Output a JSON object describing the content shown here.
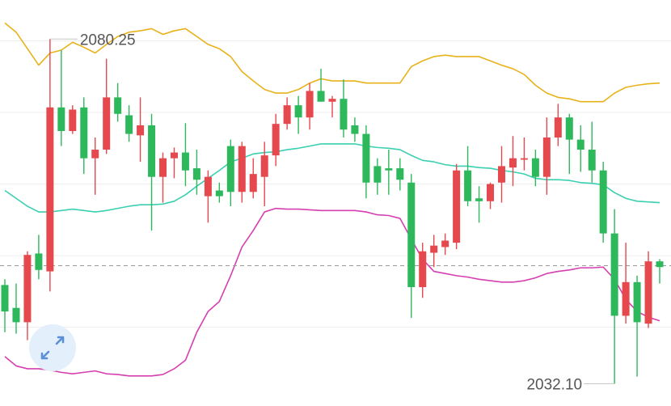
{
  "chart_data": {
    "type": "candlestick",
    "ylim": [
      2029,
      2085.7
    ],
    "yticks": [
      2040,
      2050,
      2060,
      2070,
      2080
    ],
    "grid": true,
    "show_tick_labels": false,
    "up_color": "#e5484d",
    "down_color": "#2eb85c",
    "candles": [
      [
        2045.9,
        2046.7,
        2039.3,
        2042.2
      ],
      [
        2042.7,
        2046.1,
        2039.1,
        2040.7
      ],
      [
        2040.7,
        2050.6,
        2038.2,
        2050.1
      ],
      [
        2050.3,
        2052.9,
        2046.7,
        2048.0
      ],
      [
        2047.8,
        2080.25,
        2045.0,
        2070.7
      ],
      [
        2070.7,
        2078.7,
        2065.3,
        2067.4
      ],
      [
        2067.4,
        2071.0,
        2067.0,
        2070.4
      ],
      [
        2070.7,
        2072.1,
        2061.4,
        2063.6
      ],
      [
        2063.6,
        2066.5,
        2058.5,
        2064.8
      ],
      [
        2064.8,
        2077.5,
        2064.2,
        2072.1
      ],
      [
        2072.1,
        2074.1,
        2068.7,
        2069.8
      ],
      [
        2069.6,
        2071.0,
        2065.9,
        2067.0
      ],
      [
        2066.8,
        2072.1,
        2063.1,
        2068.2
      ],
      [
        2068.2,
        2069.8,
        2053.5,
        2061.0
      ],
      [
        2061.0,
        2064.4,
        2057.4,
        2063.6
      ],
      [
        2063.6,
        2065.1,
        2060.8,
        2064.4
      ],
      [
        2064.4,
        2068.5,
        2059.7,
        2061.9
      ],
      [
        2062.2,
        2064.8,
        2058.5,
        2060.6
      ],
      [
        2058.3,
        2061.9,
        2054.6,
        2061.0
      ],
      [
        2059.1,
        2060.2,
        2057.4,
        2058.3
      ],
      [
        2065.3,
        2066.2,
        2056.9,
        2058.9
      ],
      [
        2058.9,
        2065.9,
        2057.4,
        2065.3
      ],
      [
        2058.9,
        2063.6,
        2058.0,
        2061.4
      ],
      [
        2061.0,
        2065.9,
        2056.9,
        2064.0
      ],
      [
        2064.0,
        2069.8,
        2062.5,
        2068.4
      ],
      [
        2068.4,
        2072.1,
        2067.6,
        2071.0
      ],
      [
        2071.0,
        2072.3,
        2067.0,
        2069.3
      ],
      [
        2069.3,
        2074.1,
        2067.6,
        2073.0
      ],
      [
        2073.0,
        2076.1,
        2071.5,
        2071.5
      ],
      [
        2071.5,
        2072.3,
        2069.3,
        2071.9
      ],
      [
        2071.9,
        2074.6,
        2066.5,
        2067.6
      ],
      [
        2068.2,
        2069.3,
        2065.9,
        2067.0
      ],
      [
        2067.0,
        2068.2,
        2058.0,
        2060.2
      ],
      [
        2062.5,
        2063.6,
        2058.5,
        2060.2
      ],
      [
        2062.2,
        2064.8,
        2058.5,
        2061.9
      ],
      [
        2062.2,
        2063.6,
        2059.1,
        2060.6
      ],
      [
        2060.2,
        2061.4,
        2041.3,
        2045.6
      ],
      [
        2045.6,
        2051.8,
        2044.1,
        2050.6
      ],
      [
        2050.4,
        2052.9,
        2048.4,
        2051.4
      ],
      [
        2051.2,
        2053.1,
        2050.1,
        2052.1
      ],
      [
        2051.8,
        2062.8,
        2050.9,
        2061.9
      ],
      [
        2061.9,
        2065.3,
        2056.9,
        2057.6
      ],
      [
        2058.0,
        2059.7,
        2054.6,
        2057.6
      ],
      [
        2057.6,
        2060.2,
        2056.5,
        2060.0
      ],
      [
        2060.2,
        2065.3,
        2057.4,
        2062.5
      ],
      [
        2062.3,
        2066.7,
        2059.7,
        2063.6
      ],
      [
        2063.4,
        2066.5,
        2061.9,
        2063.6
      ],
      [
        2063.6,
        2064.8,
        2059.7,
        2061.0
      ],
      [
        2061.0,
        2069.3,
        2058.5,
        2066.5
      ],
      [
        2066.5,
        2071.2,
        2065.3,
        2069.3
      ],
      [
        2069.3,
        2069.8,
        2061.4,
        2066.2
      ],
      [
        2066.2,
        2068.2,
        2061.7,
        2064.8
      ],
      [
        2064.8,
        2068.7,
        2060.2,
        2061.9
      ],
      [
        2061.9,
        2063.1,
        2051.8,
        2053.1
      ],
      [
        2053.1,
        2056.5,
        2032.1,
        2041.6
      ],
      [
        2041.6,
        2051.8,
        2040.5,
        2046.3
      ],
      [
        2046.3,
        2047.2,
        2033.1,
        2040.7
      ],
      [
        2040.5,
        2050.6,
        2039.9,
        2049.2
      ],
      [
        2049.2,
        2049.5,
        2046.1,
        2048.4
      ]
    ],
    "series": [
      {
        "color": "#e8b21a",
        "values": [
          2082.5,
          2081.2,
          2078.9,
          2076.6,
          2078.3,
          2078.7,
          2079.8,
          2079.1,
          2078.3,
          2079.5,
          2080.6,
          2081.2,
          2081.4,
          2081.7,
          2080.9,
          2081.4,
          2081.7,
          2080.6,
          2079.5,
          2078.9,
          2077.8,
          2075.7,
          2074.4,
          2073.2,
          2072.7,
          2072.7,
          2073.2,
          2074.1,
          2074.7,
          2074.4,
          2074.4,
          2074.4,
          2074.1,
          2074.1,
          2074.1,
          2074.1,
          2076.4,
          2077.2,
          2077.8,
          2078.0,
          2077.8,
          2077.8,
          2077.8,
          2077.2,
          2076.6,
          2076.1,
          2075.3,
          2073.8,
          2072.7,
          2072.1,
          2071.9,
          2071.5,
          2071.5,
          2071.5,
          2072.7,
          2073.5,
          2073.8,
          2074.0,
          2074.1
        ]
      },
      {
        "color": "#3ccfb0",
        "values": [
          2059.1,
          2058.0,
          2056.9,
          2056.1,
          2056.1,
          2056.3,
          2056.5,
          2056.3,
          2056.1,
          2056.3,
          2056.6,
          2056.9,
          2057.1,
          2057.1,
          2057.2,
          2057.6,
          2058.5,
          2059.7,
          2060.8,
          2061.9,
          2063.1,
          2063.6,
          2064.2,
          2064.4,
          2064.5,
          2064.8,
          2065.0,
          2065.3,
          2065.6,
          2065.6,
          2065.6,
          2065.6,
          2065.3,
          2065.1,
          2065.0,
          2064.8,
          2064.0,
          2063.3,
          2063.1,
          2062.7,
          2062.5,
          2062.5,
          2062.3,
          2062.2,
          2061.9,
          2061.7,
          2061.4,
          2060.8,
          2060.6,
          2060.6,
          2060.5,
          2060.2,
          2060.1,
          2059.9,
          2058.8,
          2058.0,
          2057.6,
          2057.5,
          2057.4
        ]
      },
      {
        "color": "#d63fb0",
        "values": [
          2035.9,
          2034.6,
          2034.2,
          2034.2,
          2034.0,
          2033.7,
          2033.5,
          2033.7,
          2033.9,
          2033.5,
          2033.4,
          2033.2,
          2033.2,
          2033.2,
          2033.4,
          2034.2,
          2035.4,
          2039.3,
          2042.2,
          2043.6,
          2047.2,
          2051.2,
          2053.5,
          2056.1,
          2056.6,
          2056.5,
          2056.5,
          2056.4,
          2056.3,
          2056.3,
          2056.3,
          2056.3,
          2056.1,
          2055.7,
          2055.6,
          2055.2,
          2052.3,
          2049.5,
          2047.8,
          2047.5,
          2047.2,
          2047.0,
          2046.7,
          2046.5,
          2046.3,
          2046.3,
          2046.5,
          2046.9,
          2047.5,
          2047.8,
          2048.0,
          2048.3,
          2048.3,
          2048.4,
          2046.7,
          2043.9,
          2042.2,
          2041.4,
          2040.9
        ]
      }
    ],
    "price_line": 2048.6,
    "max_label": "2080.25",
    "min_label": "2032.10"
  }
}
